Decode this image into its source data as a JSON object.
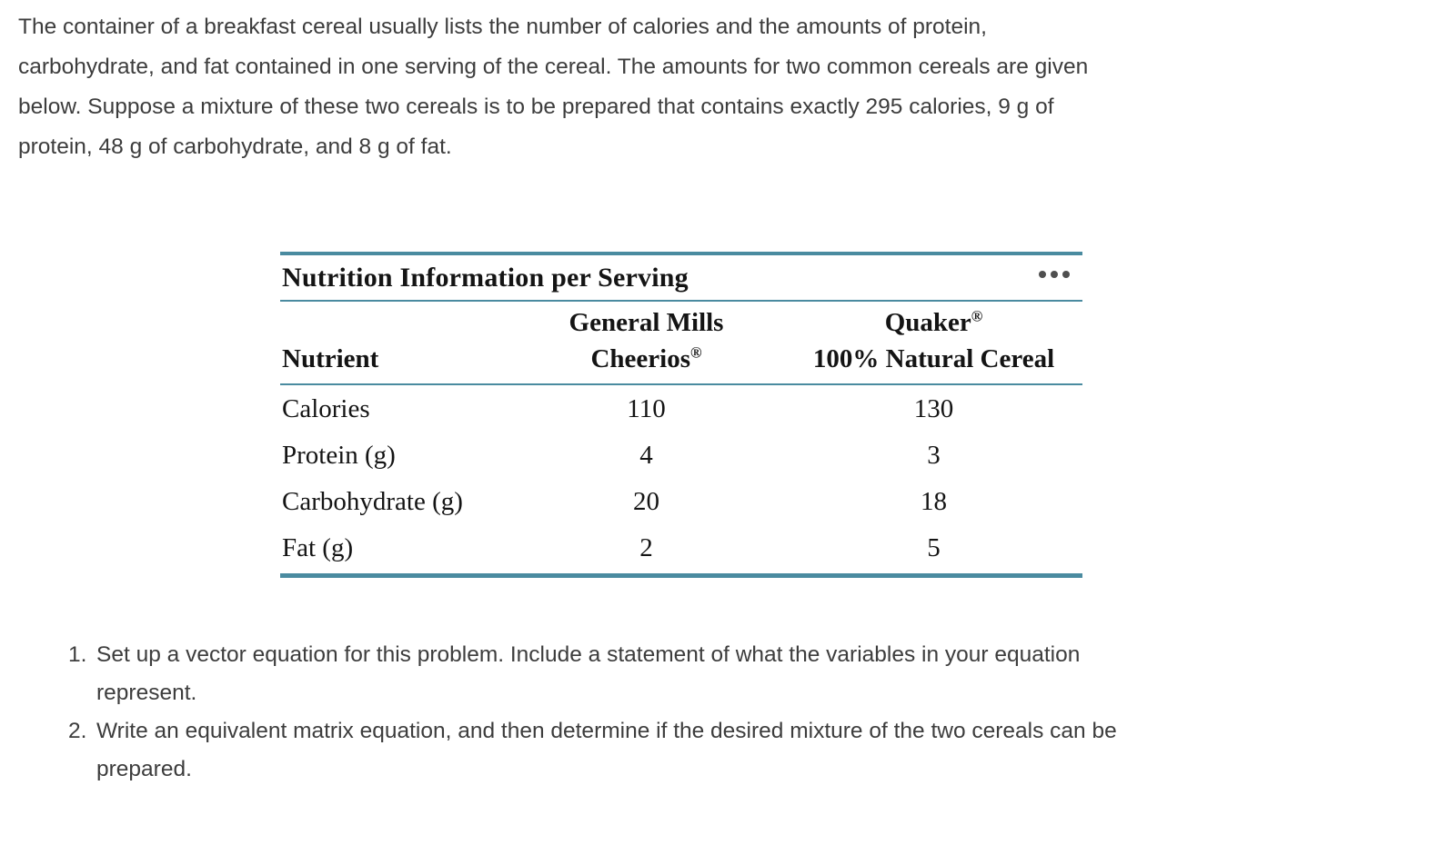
{
  "intro": {
    "lines": [
      "The container of a breakfast cereal usually lists the number of calories and the amounts of protein,",
      "carbohydrate, and fat contained in one serving of the cereal. The amounts for two common cereals are given",
      "below. Suppose a mixture of these two cereals is to be prepared that contains exactly 295 calories, 9 g of",
      "protein, 48 g of carbohydrate, and 8 g of fat."
    ]
  },
  "table": {
    "title": "Nutrition Information per Serving",
    "accent_color": "#4a8ba0",
    "columns": {
      "nutrient_header": "Nutrient",
      "cheerios_line1": "General Mills",
      "cheerios_line2": "Cheerios",
      "cheerios_reg": "®",
      "quaker_line1": "Quaker",
      "quaker_reg": "®",
      "quaker_line2": "100% Natural Cereal"
    },
    "rows": [
      {
        "nutrient": "Calories",
        "cheerios": "110",
        "quaker": "130"
      },
      {
        "nutrient": "Protein (g)",
        "cheerios": "4",
        "quaker": "3"
      },
      {
        "nutrient": "Carbohydrate (g)",
        "cheerios": "20",
        "quaker": "18"
      },
      {
        "nutrient": "Fat (g)",
        "cheerios": "2",
        "quaker": "5"
      }
    ]
  },
  "questions": [
    {
      "number": "1.",
      "lines": [
        "Set up a vector equation for this problem. Include a statement of what the variables in your equation",
        "represent."
      ]
    },
    {
      "number": "2.",
      "lines": [
        "Write an equivalent matrix equation, and then determine if the desired mixture of the two cereals can be",
        "prepared."
      ]
    }
  ]
}
